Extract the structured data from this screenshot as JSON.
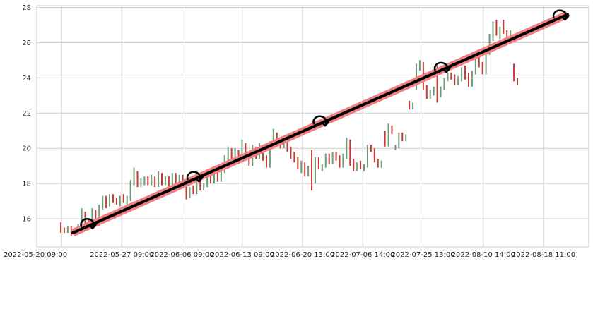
{
  "chart_data": {
    "type": "ohlc-bar",
    "title": "",
    "xlabel": "",
    "ylabel": "",
    "ylim": [
      14.4,
      28.1
    ],
    "yticks": [
      16,
      18,
      20,
      22,
      24,
      26,
      28
    ],
    "ytick_labels": [
      "16",
      "18",
      "20",
      "22",
      "24",
      "26",
      "28"
    ],
    "xtick_labels": [
      "2022-05-20 09:00",
      "2022-05-27 09:00",
      "2022-06-06 09:00",
      "2022-06-13 09:00",
      "2022-06-20 13:00",
      "2022-07-06 14:00",
      "2022-07-25 13:00",
      "2022-08-10 14:00",
      "2022-08-18 11:00"
    ],
    "grid": true,
    "colors": {
      "up": "#6b9e78",
      "down": "#c93a32",
      "trend_band": "#f08080",
      "trend_line": "#000000",
      "grid": "#cccccc"
    },
    "bars": [
      [
        15.5,
        15.8,
        15.2,
        15.4
      ],
      [
        15.4,
        15.5,
        15.2,
        15.3
      ],
      [
        15.3,
        15.6,
        15.2,
        15.5
      ],
      [
        15.5,
        15.6,
        15.0,
        15.1
      ],
      [
        15.1,
        15.5,
        15.0,
        15.4
      ],
      [
        15.4,
        15.7,
        15.3,
        15.5
      ],
      [
        15.5,
        16.6,
        15.4,
        16.2
      ],
      [
        16.2,
        16.4,
        15.7,
        15.8
      ],
      [
        15.8,
        16.0,
        15.5,
        15.6
      ],
      [
        15.6,
        16.6,
        15.5,
        16.3
      ],
      [
        16.3,
        16.5,
        15.6,
        15.7
      ],
      [
        15.7,
        16.8,
        15.6,
        16.6
      ],
      [
        16.6,
        17.3,
        16.5,
        17.1
      ],
      [
        17.1,
        17.3,
        16.6,
        16.8
      ],
      [
        16.8,
        17.4,
        16.7,
        17.3
      ],
      [
        17.3,
        17.4,
        16.9,
        17.0
      ],
      [
        17.0,
        17.2,
        16.8,
        16.9
      ],
      [
        16.9,
        17.3,
        16.7,
        17.2
      ],
      [
        17.2,
        17.4,
        16.9,
        17.0
      ],
      [
        17.0,
        17.3,
        16.8,
        17.1
      ],
      [
        17.1,
        18.2,
        17.0,
        18.0
      ],
      [
        18.0,
        18.9,
        17.9,
        18.6
      ],
      [
        18.6,
        18.7,
        17.8,
        17.9
      ],
      [
        17.9,
        18.3,
        17.8,
        18.1
      ],
      [
        18.1,
        18.4,
        17.9,
        18.2
      ],
      [
        18.2,
        18.4,
        17.9,
        18.0
      ],
      [
        18.0,
        18.5,
        17.9,
        18.3
      ],
      [
        18.3,
        18.4,
        17.8,
        17.9
      ],
      [
        17.9,
        18.7,
        17.8,
        18.5
      ],
      [
        18.5,
        18.6,
        17.9,
        18.0
      ],
      [
        18.0,
        18.4,
        17.9,
        18.2
      ],
      [
        18.2,
        18.4,
        17.8,
        17.9
      ],
      [
        17.9,
        18.6,
        17.8,
        18.4
      ],
      [
        18.4,
        18.6,
        17.9,
        18.0
      ],
      [
        18.0,
        18.5,
        17.9,
        18.3
      ],
      [
        18.3,
        18.5,
        17.8,
        17.9
      ],
      [
        17.9,
        18.1,
        17.1,
        17.3
      ],
      [
        17.3,
        17.8,
        17.2,
        17.6
      ],
      [
        17.6,
        17.9,
        17.4,
        17.5
      ],
      [
        17.5,
        18.3,
        17.4,
        18.1
      ],
      [
        18.1,
        18.3,
        17.6,
        17.7
      ],
      [
        17.7,
        18.0,
        17.6,
        17.9
      ],
      [
        17.9,
        18.6,
        17.8,
        18.4
      ],
      [
        18.4,
        18.5,
        18.0,
        18.1
      ],
      [
        18.1,
        18.7,
        18.0,
        18.5
      ],
      [
        18.5,
        18.6,
        18.1,
        18.2
      ],
      [
        18.2,
        18.9,
        18.1,
        18.7
      ],
      [
        18.7,
        19.6,
        18.6,
        19.4
      ],
      [
        19.4,
        20.1,
        19.3,
        19.9
      ],
      [
        19.9,
        20.0,
        19.4,
        19.5
      ],
      [
        19.5,
        20.0,
        19.3,
        19.8
      ],
      [
        19.8,
        19.9,
        19.2,
        19.3
      ],
      [
        19.3,
        20.5,
        19.2,
        20.2
      ],
      [
        20.2,
        20.3,
        19.4,
        19.5
      ],
      [
        19.5,
        19.7,
        19.0,
        19.1
      ],
      [
        19.1,
        20.2,
        19.0,
        19.9
      ],
      [
        19.9,
        20.1,
        19.4,
        19.5
      ],
      [
        19.5,
        20.3,
        19.4,
        20.0
      ],
      [
        20.0,
        20.2,
        19.3,
        19.4
      ],
      [
        19.4,
        19.6,
        18.9,
        19.0
      ],
      [
        19.0,
        20.4,
        18.9,
        20.2
      ],
      [
        20.2,
        21.1,
        20.1,
        20.8
      ],
      [
        20.8,
        20.9,
        20.2,
        20.3
      ],
      [
        20.3,
        20.5,
        20.0,
        20.1
      ],
      [
        20.1,
        20.6,
        20.0,
        20.4
      ],
      [
        20.4,
        20.5,
        19.8,
        19.9
      ],
      [
        19.9,
        20.1,
        19.4,
        19.5
      ],
      [
        19.5,
        19.8,
        19.2,
        19.3
      ],
      [
        19.3,
        19.5,
        18.8,
        18.9
      ],
      [
        18.9,
        19.3,
        18.6,
        19.1
      ],
      [
        19.1,
        19.2,
        18.4,
        18.5
      ],
      [
        18.5,
        19.0,
        18.4,
        18.9
      ],
      [
        18.9,
        19.9,
        17.6,
        18.1
      ],
      [
        18.1,
        19.5,
        18.0,
        19.3
      ],
      [
        19.3,
        19.5,
        18.8,
        18.9
      ],
      [
        18.9,
        19.1,
        18.7,
        19.0
      ],
      [
        19.0,
        19.7,
        18.9,
        19.6
      ],
      [
        19.6,
        19.7,
        19.1,
        19.2
      ],
      [
        19.2,
        19.8,
        19.1,
        19.7
      ],
      [
        19.7,
        19.8,
        19.3,
        19.4
      ],
      [
        19.4,
        19.6,
        18.9,
        19.0
      ],
      [
        19.0,
        19.7,
        18.9,
        19.5
      ],
      [
        19.5,
        20.6,
        19.4,
        20.3
      ],
      [
        20.3,
        20.5,
        19.0,
        19.1
      ],
      [
        19.1,
        19.4,
        18.7,
        18.8
      ],
      [
        18.8,
        19.2,
        18.7,
        19.1
      ],
      [
        19.1,
        19.3,
        18.8,
        18.9
      ],
      [
        18.9,
        19.1,
        18.7,
        19.0
      ],
      [
        19.0,
        20.2,
        18.9,
        20.1
      ],
      [
        20.1,
        20.2,
        19.8,
        19.9
      ],
      [
        19.9,
        20.0,
        19.2,
        19.3
      ],
      [
        19.3,
        19.4,
        18.9,
        19.0
      ],
      [
        19.0,
        19.3,
        18.9,
        19.2
      ],
      [
        20.3,
        21.0,
        20.1,
        20.2
      ],
      [
        20.2,
        21.4,
        20.1,
        21.2
      ],
      [
        21.2,
        21.3,
        20.8,
        20.9
      ],
      [
        20.0,
        20.2,
        19.9,
        20.1
      ],
      [
        20.1,
        20.9,
        20.0,
        20.6
      ],
      [
        20.6,
        20.9,
        20.4,
        20.5
      ],
      [
        20.5,
        20.8,
        20.4,
        20.7
      ],
      [
        22.5,
        22.7,
        22.2,
        22.3
      ],
      [
        22.3,
        22.6,
        22.2,
        22.4
      ],
      [
        23.4,
        24.8,
        23.3,
        24.5
      ],
      [
        24.5,
        25.0,
        24.4,
        24.8
      ],
      [
        24.8,
        24.9,
        23.3,
        23.5
      ],
      [
        23.5,
        23.6,
        22.8,
        22.9
      ],
      [
        22.9,
        23.3,
        22.8,
        23.2
      ],
      [
        23.2,
        23.5,
        23.0,
        23.4
      ],
      [
        23.4,
        24.7,
        22.6,
        23.0
      ],
      [
        23.0,
        23.5,
        22.9,
        23.4
      ],
      [
        23.4,
        24.0,
        23.3,
        23.9
      ],
      [
        23.9,
        24.3,
        23.8,
        24.2
      ],
      [
        24.2,
        24.3,
        23.9,
        24.0
      ],
      [
        24.0,
        24.2,
        23.6,
        23.7
      ],
      [
        23.7,
        24.1,
        23.6,
        23.9
      ],
      [
        23.9,
        24.6,
        23.8,
        24.5
      ],
      [
        24.5,
        24.7,
        23.9,
        24.0
      ],
      [
        24.0,
        24.3,
        23.5,
        23.6
      ],
      [
        23.6,
        24.4,
        23.5,
        24.3
      ],
      [
        24.3,
        25.2,
        24.2,
        25.0
      ],
      [
        25.0,
        25.3,
        24.6,
        24.7
      ],
      [
        24.7,
        24.9,
        24.2,
        24.3
      ],
      [
        24.3,
        25.6,
        24.2,
        25.4
      ],
      [
        25.4,
        26.5,
        25.3,
        26.2
      ],
      [
        26.2,
        27.2,
        26.1,
        27.0
      ],
      [
        27.0,
        27.3,
        26.4,
        26.5
      ],
      [
        26.5,
        26.9,
        26.2,
        26.8
      ],
      [
        26.8,
        27.3,
        26.5,
        26.6
      ],
      [
        26.6,
        26.7,
        26.2,
        26.3
      ],
      [
        26.3,
        26.7,
        26.2,
        26.5
      ],
      [
        24.7,
        24.8,
        23.8,
        23.9
      ],
      [
        23.9,
        24.0,
        23.6,
        23.7
      ]
    ],
    "trend": {
      "start": 15.2,
      "end": 27.6
    },
    "annotations": [
      {
        "at": 0.03,
        "glyph": "curved-arrow-icon"
      },
      {
        "at": 0.245,
        "glyph": "curved-arrow-icon"
      },
      {
        "at": 0.5,
        "glyph": "curved-arrow-icon"
      },
      {
        "at": 0.745,
        "glyph": "curved-arrow-icon"
      },
      {
        "at": 0.985,
        "glyph": "curved-arrow-icon"
      }
    ]
  }
}
